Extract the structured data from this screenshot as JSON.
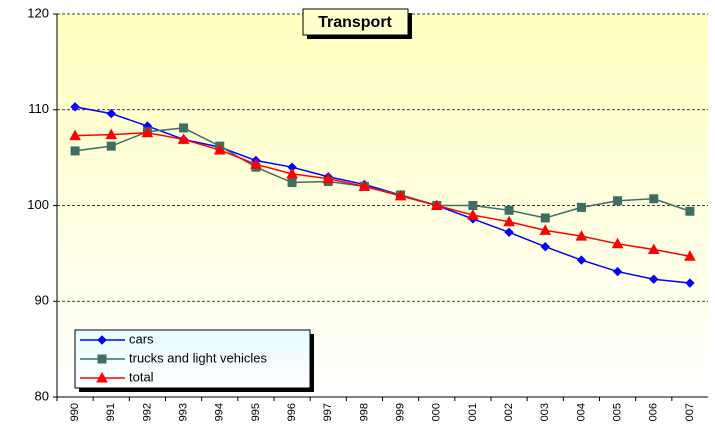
{
  "chart_data": {
    "type": "line",
    "title": "Transport",
    "categories": [
      "990",
      "991",
      "992",
      "993",
      "994",
      "995",
      "996",
      "997",
      "998",
      "999",
      "000",
      "001",
      "002",
      "003",
      "004",
      "005",
      "006",
      "007"
    ],
    "series": [
      {
        "name": "cars",
        "color": "#0000ff",
        "marker": "diamond",
        "values": [
          110.3,
          109.6,
          108.3,
          106.9,
          106.1,
          104.7,
          104.0,
          103.0,
          102.2,
          101.1,
          100,
          98.6,
          97.2,
          95.7,
          94.3,
          93.1,
          92.3,
          91.9
        ]
      },
      {
        "name": "trucks and light vehicles",
        "color": "#3d6e64",
        "marker": "square",
        "values": [
          105.7,
          106.2,
          107.7,
          108.1,
          106.2,
          104.0,
          102.4,
          102.5,
          102.0,
          101.1,
          100,
          100,
          99.5,
          98.7,
          99.8,
          100.5,
          100.7,
          99.4
        ]
      },
      {
        "name": "total",
        "color": "#ff0000",
        "marker": "triangle",
        "values": [
          107.3,
          107.4,
          107.6,
          106.9,
          105.8,
          104.3,
          103.3,
          102.8,
          102.0,
          101.0,
          100,
          99.0,
          98.3,
          97.4,
          96.8,
          96.0,
          95.4,
          94.7
        ]
      }
    ],
    "ylim": [
      80,
      120
    ],
    "yticks": [
      80,
      90,
      100,
      110,
      120
    ],
    "grid": true,
    "legend": "lower left"
  }
}
